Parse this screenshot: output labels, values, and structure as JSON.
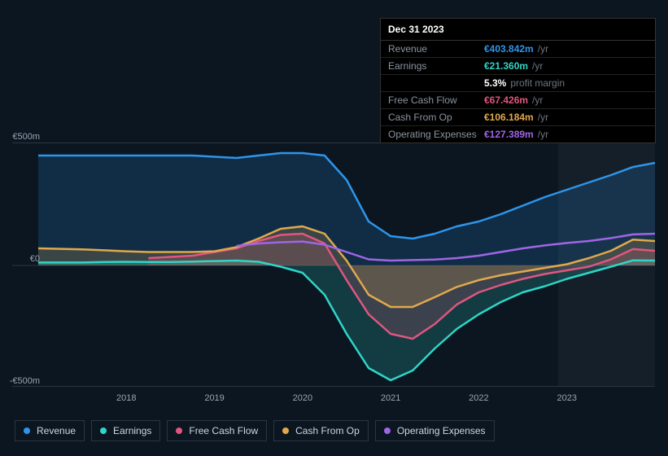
{
  "chart": {
    "type": "area-line",
    "background_color": "#0b1621",
    "grid_color": "#2a3540",
    "tooltip_bg": "#000000",
    "tooltip_border": "#333333",
    "text_color": "#a9b4c0",
    "muted_text_color": "#6b7580",
    "y_axis": {
      "min": -500,
      "max": 500,
      "unit": "€m",
      "ticks": [
        {
          "value": 500,
          "label": "€500m"
        },
        {
          "value": 0,
          "label": "€0"
        },
        {
          "value": -500,
          "label": "-€500m"
        }
      ]
    },
    "x_axis": {
      "start_year": 2017,
      "end_year": 2024,
      "tick_labels": [
        "2018",
        "2019",
        "2020",
        "2021",
        "2022",
        "2023"
      ]
    },
    "highlight_band": {
      "from": 2022.9,
      "to": 2024
    },
    "series": [
      {
        "key": "revenue",
        "label": "Revenue",
        "color": "#2e95ea",
        "line_width": 2.5,
        "fill_opacity": 0.18,
        "values": [
          450,
          450,
          450,
          450,
          450,
          450,
          450,
          450,
          445,
          440,
          450,
          460,
          460,
          450,
          350,
          180,
          120,
          110,
          130,
          160,
          180,
          210,
          245,
          280,
          310,
          340,
          370,
          403,
          420
        ]
      },
      {
        "key": "earnings",
        "label": "Earnings",
        "color": "#30d5c8",
        "line_width": 2.5,
        "fill_opacity": 0.2,
        "values": [
          12,
          12,
          12,
          14,
          15,
          14,
          14,
          16,
          18,
          20,
          15,
          -5,
          -30,
          -120,
          -280,
          -420,
          -470,
          -430,
          -340,
          -260,
          -200,
          -150,
          -110,
          -85,
          -55,
          -30,
          -5,
          21,
          20
        ]
      },
      {
        "key": "fcf",
        "label": "Free Cash Flow",
        "color": "#e0567f",
        "line_width": 2.5,
        "fill_opacity": 0.2,
        "values": [
          null,
          null,
          null,
          null,
          null,
          30,
          35,
          40,
          55,
          70,
          100,
          125,
          130,
          90,
          -60,
          -200,
          -280,
          -300,
          -240,
          -160,
          -110,
          -80,
          -55,
          -35,
          -20,
          -5,
          25,
          67,
          60
        ]
      },
      {
        "key": "cfo",
        "label": "Cash From Op",
        "color": "#e0a94d",
        "line_width": 2.5,
        "fill_opacity": 0.2,
        "values": [
          70,
          68,
          66,
          62,
          58,
          55,
          55,
          55,
          58,
          75,
          110,
          150,
          160,
          130,
          20,
          -120,
          -170,
          -170,
          -130,
          -88,
          -60,
          -40,
          -25,
          -10,
          5,
          30,
          60,
          106,
          100
        ]
      },
      {
        "key": "opex",
        "label": "Operating Expenses",
        "color": "#a065e6",
        "line_width": 2.5,
        "fill_opacity": 0.0,
        "values": [
          null,
          null,
          null,
          null,
          null,
          null,
          null,
          null,
          null,
          80,
          90,
          95,
          98,
          85,
          55,
          25,
          20,
          22,
          24,
          30,
          40,
          55,
          70,
          82,
          92,
          100,
          112,
          127,
          130
        ]
      }
    ],
    "tooltip": {
      "date": "Dec 31 2023",
      "rows": [
        {
          "label": "Revenue",
          "value": "€403.842m",
          "suffix": "/yr",
          "color": "#2e95ea"
        },
        {
          "label": "Earnings",
          "value": "€21.360m",
          "suffix": "/yr",
          "color": "#30d5c8"
        },
        {
          "label": "",
          "value": "5.3%",
          "suffix": "profit margin",
          "color": "#ffffff"
        },
        {
          "label": "Free Cash Flow",
          "value": "€67.426m",
          "suffix": "/yr",
          "color": "#e0567f"
        },
        {
          "label": "Cash From Op",
          "value": "€106.184m",
          "suffix": "/yr",
          "color": "#e0a94d"
        },
        {
          "label": "Operating Expenses",
          "value": "€127.389m",
          "suffix": "/yr",
          "color": "#a065e6"
        }
      ]
    },
    "label_fontsize": 11,
    "legend_fontsize": 12
  }
}
